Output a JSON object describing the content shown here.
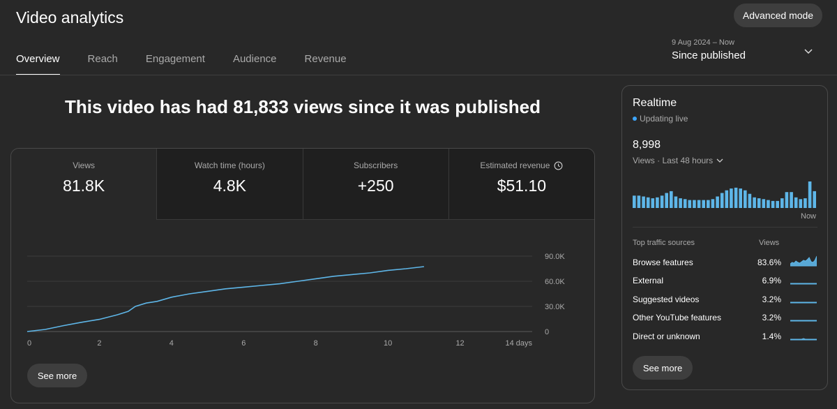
{
  "header": {
    "title": "Video analytics",
    "advanced_label": "Advanced mode",
    "tabs": [
      {
        "label": "Overview"
      },
      {
        "label": "Reach"
      },
      {
        "label": "Engagement"
      },
      {
        "label": "Audience"
      },
      {
        "label": "Revenue"
      }
    ],
    "date_range": "9 Aug 2024 – Now",
    "date_label": "Since published"
  },
  "headline": "This video has had 81,833 views since it was published",
  "metrics": [
    {
      "label": "Views",
      "value": "81.8K"
    },
    {
      "label": "Watch time (hours)",
      "value": "4.8K"
    },
    {
      "label": "Subscribers",
      "value": "+250"
    },
    {
      "label": "Estimated revenue",
      "value": "$51.10"
    }
  ],
  "chart_data": {
    "type": "line",
    "series": [
      {
        "x": [
          0,
          0.5,
          1,
          1.5,
          2,
          2.5,
          2.8,
          3,
          3.3,
          3.6,
          4,
          4.5,
          5,
          5.5,
          6,
          6.5,
          7,
          7.5,
          8,
          8.5,
          9,
          9.5,
          10,
          10.5,
          11
        ],
        "values": [
          0,
          2500,
          7000,
          11000,
          14500,
          20000,
          24000,
          30000,
          34000,
          36000,
          41000,
          45000,
          48000,
          51000,
          53000,
          55000,
          57000,
          60000,
          63000,
          66000,
          68000,
          70000,
          73000,
          75000,
          77500
        ]
      }
    ],
    "x_ticks": [
      "0",
      "2",
      "4",
      "6",
      "8",
      "10",
      "12",
      "14 days"
    ],
    "y_ticks": [
      "0",
      "30.0K",
      "60.0K",
      "90.0K"
    ],
    "xlim": [
      0,
      14
    ],
    "ylim": [
      0,
      90000
    ],
    "grid": true,
    "color": "#5eb6e8"
  },
  "see_more_label": "See more",
  "realtime": {
    "title": "Realtime",
    "live_label": "Updating live",
    "count": "8,998",
    "period_label": "Views · Last 48 hours",
    "now_label": "Now",
    "bars": [
      14,
      14,
      13,
      12,
      11,
      12,
      14,
      17,
      19,
      13,
      11,
      10,
      9,
      9,
      9,
      9,
      9,
      10,
      13,
      17,
      20,
      22,
      23,
      22,
      20,
      16,
      12,
      11,
      10,
      9,
      8,
      8,
      11,
      18,
      18,
      12,
      10,
      11,
      30,
      19
    ],
    "bar_color": "#5eb6e8",
    "sources_header": "Top traffic sources",
    "views_header": "Views",
    "sources": [
      {
        "name": "Browse features",
        "pct": "83.6%",
        "spark": [
          3,
          5,
          4,
          7,
          5,
          4,
          6,
          8,
          7,
          9,
          12,
          6,
          5,
          8,
          14
        ]
      },
      {
        "name": "External",
        "pct": "6.9%",
        "spark": [
          1,
          1,
          1,
          1,
          1,
          1,
          1,
          1,
          1,
          1,
          1,
          1,
          1,
          1,
          1
        ]
      },
      {
        "name": "Suggested videos",
        "pct": "3.2%",
        "spark": [
          1,
          1,
          1,
          1,
          1,
          1,
          1,
          1,
          1,
          1,
          1,
          1,
          1,
          1,
          1
        ]
      },
      {
        "name": "Other YouTube features",
        "pct": "3.2%",
        "spark": [
          1,
          1,
          1,
          1,
          1,
          1,
          1,
          1,
          1,
          1,
          1,
          1,
          1,
          1,
          1
        ]
      },
      {
        "name": "Direct or unknown",
        "pct": "1.4%",
        "spark": [
          1,
          1,
          1,
          1,
          1,
          1,
          1,
          2,
          1,
          1,
          1,
          1,
          1,
          1,
          1
        ]
      }
    ]
  }
}
